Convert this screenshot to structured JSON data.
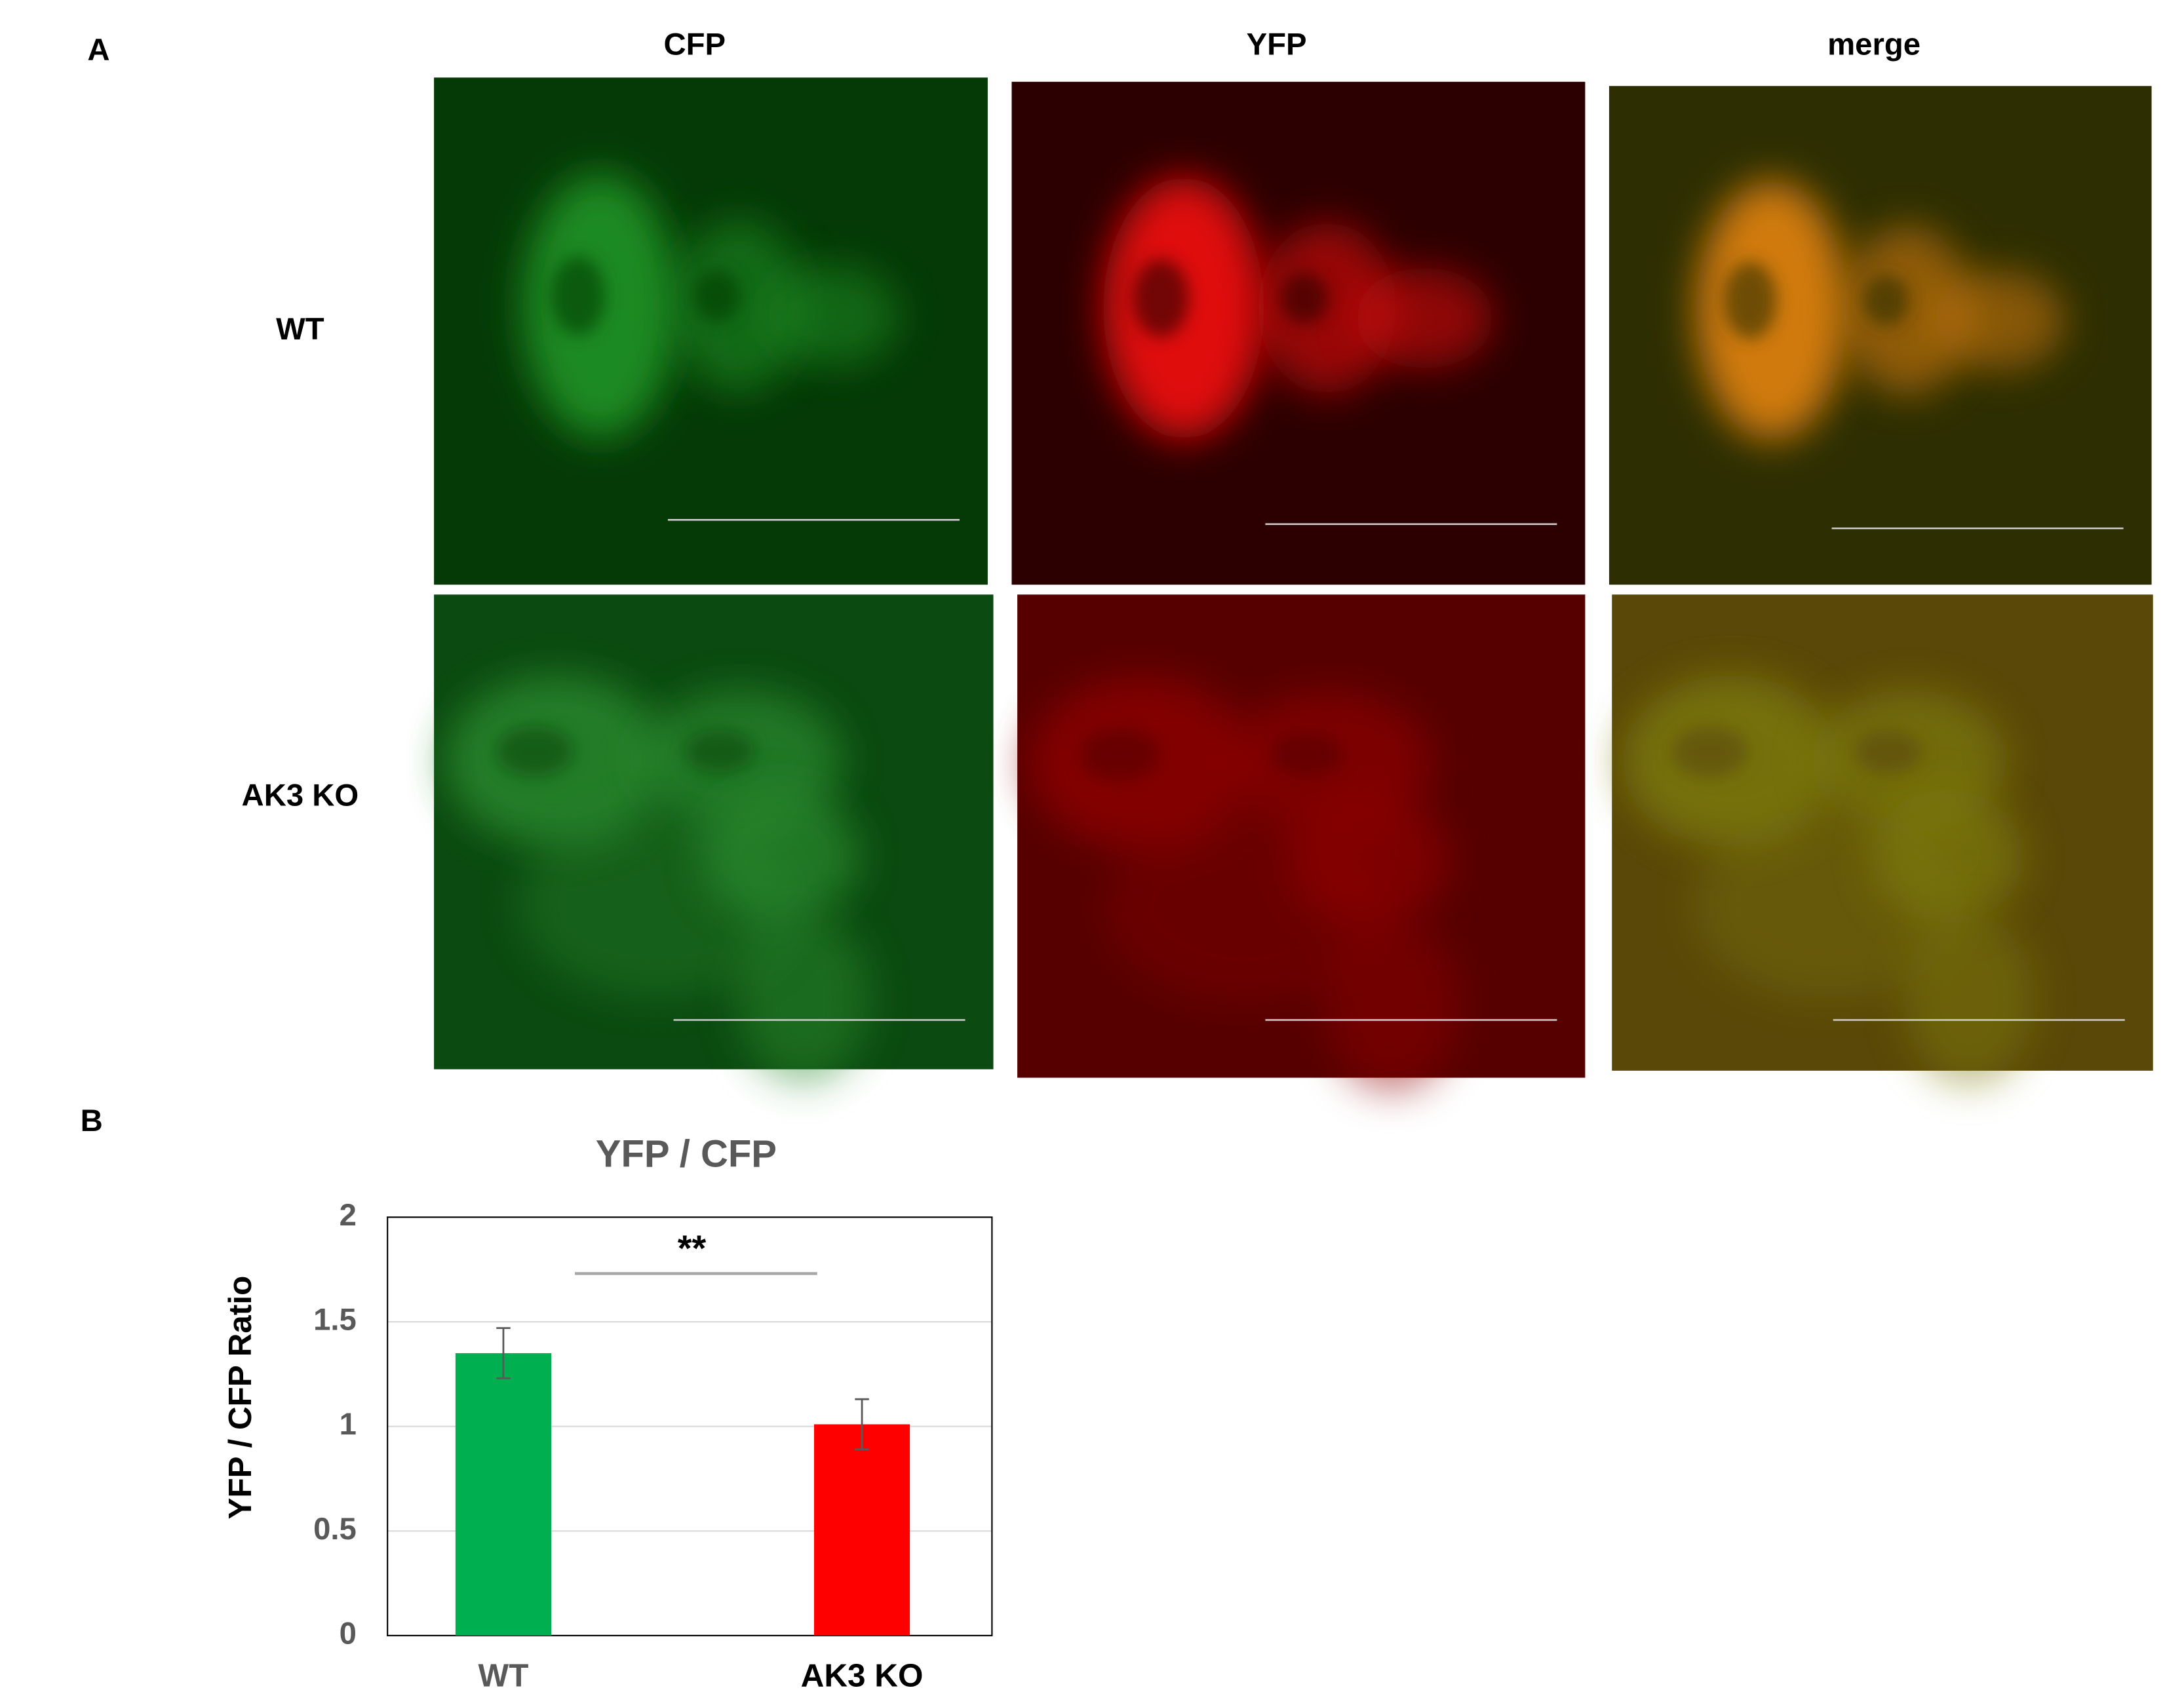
{
  "panel_labels": [
    "A",
    "B"
  ],
  "microscopy": {
    "columns": [
      "CFP",
      "YFP",
      "merge"
    ],
    "rows": [
      "WT",
      "AK3 KO"
    ]
  },
  "chart_data": {
    "type": "bar",
    "title": "YFP / CFP",
    "y_label": "YFP / CFP Ratio",
    "categories": [
      "WT",
      "AK3 KO"
    ],
    "values": [
      1.35,
      1.01
    ],
    "errors": [
      0.12,
      0.12
    ],
    "colors": [
      "#00b050",
      "#ff0000"
    ],
    "ylim": [
      0,
      2
    ],
    "yticks": [
      0,
      0.5,
      1,
      1.5,
      2
    ],
    "grid": true,
    "annotation": "**"
  }
}
